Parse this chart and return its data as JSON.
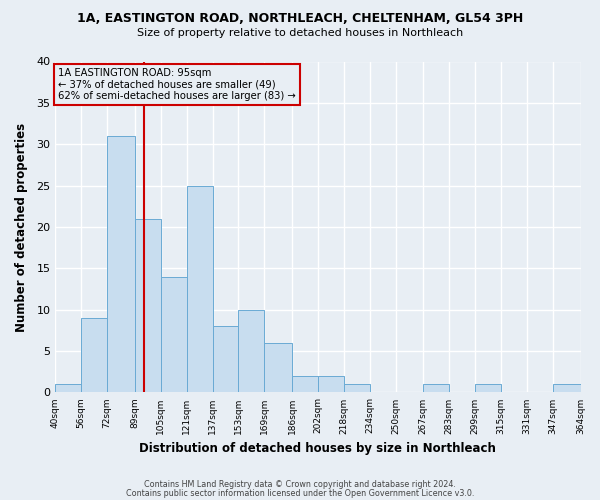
{
  "title_line1": "1A, EASTINGTON ROAD, NORTHLEACH, CHELTENHAM, GL54 3PH",
  "title_line2": "Size of property relative to detached houses in Northleach",
  "xlabel": "Distribution of detached houses by size in Northleach",
  "ylabel": "Number of detached properties",
  "bin_edges": [
    40,
    56,
    72,
    89,
    105,
    121,
    137,
    153,
    169,
    186,
    202,
    218,
    234,
    250,
    267,
    283,
    299,
    315,
    331,
    347,
    364
  ],
  "bin_labels": [
    "40sqm",
    "56sqm",
    "72sqm",
    "89sqm",
    "105sqm",
    "121sqm",
    "137sqm",
    "153sqm",
    "169sqm",
    "186sqm",
    "202sqm",
    "218sqm",
    "234sqm",
    "250sqm",
    "267sqm",
    "283sqm",
    "299sqm",
    "315sqm",
    "331sqm",
    "347sqm",
    "364sqm"
  ],
  "counts": [
    1,
    9,
    31,
    21,
    14,
    25,
    8,
    10,
    6,
    2,
    2,
    1,
    0,
    0,
    1,
    0,
    1,
    0,
    0,
    1
  ],
  "bar_color": "#c8ddef",
  "bar_edge_color": "#6aaad4",
  "property_value": 95,
  "vline_color": "#cc0000",
  "annotation_line1": "1A EASTINGTON ROAD: 95sqm",
  "annotation_line2": "← 37% of detached houses are smaller (49)",
  "annotation_line3": "62% of semi-detached houses are larger (83) →",
  "annotation_box_edgecolor": "#cc0000",
  "ylim": [
    0,
    40
  ],
  "yticks": [
    0,
    5,
    10,
    15,
    20,
    25,
    30,
    35,
    40
  ],
  "footer_line1": "Contains HM Land Registry data © Crown copyright and database right 2024.",
  "footer_line2": "Contains public sector information licensed under the Open Government Licence v3.0.",
  "background_color": "#e8eef4",
  "plot_bg_color": "#e8eef4",
  "grid_color": "#ffffff"
}
